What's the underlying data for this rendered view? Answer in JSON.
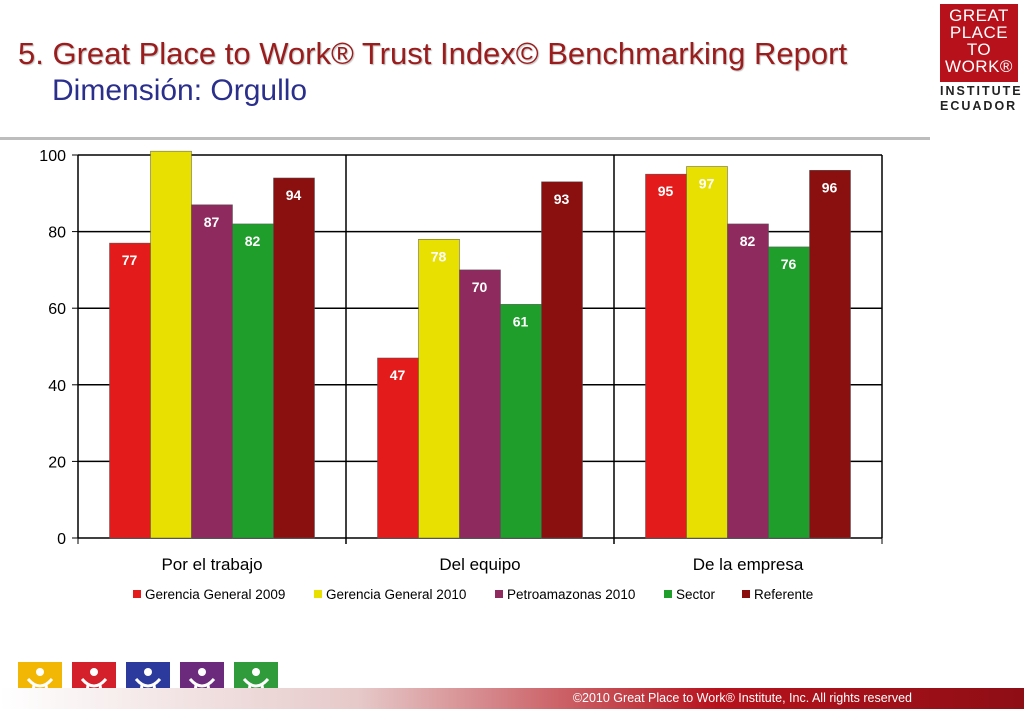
{
  "header": {
    "title": "5. Great Place to Work® Trust Index© Benchmarking Report",
    "subtitle": "Dimensión: Orgullo"
  },
  "logo": {
    "lines": [
      "GREAT",
      "PLACE",
      "TO",
      "WORK®"
    ],
    "institute": "INSTITUTE",
    "country": "ECUADOR",
    "color": "#b7121c"
  },
  "chart_data": {
    "type": "bar",
    "title": "",
    "xlabel": "",
    "ylabel": "",
    "ylim": [
      0,
      100
    ],
    "yticks": [
      0,
      20,
      40,
      60,
      80,
      100
    ],
    "grid": true,
    "legend_position": "bottom",
    "categories": [
      "Por el trabajo",
      "Del equipo",
      "De la empresa"
    ],
    "series": [
      {
        "name": "Gerencia General 2009",
        "color": "#e31b1b",
        "values": [
          77,
          47,
          95
        ],
        "labels": [
          "77",
          "47",
          "95"
        ]
      },
      {
        "name": "Gerencia General 2010",
        "color": "#e8e000",
        "values": [
          101,
          78,
          97
        ],
        "labels": [
          "",
          "78",
          "97"
        ]
      },
      {
        "name": "Petroamazonas 2010",
        "color": "#8e2a5e",
        "values": [
          87,
          70,
          82
        ],
        "labels": [
          "87",
          "70",
          "82"
        ]
      },
      {
        "name": "Sector",
        "color": "#1f9e2c",
        "values": [
          82,
          61,
          76
        ],
        "labels": [
          "82",
          "61",
          "76"
        ]
      },
      {
        "name": "Referente",
        "color": "#8a0f0f",
        "values": [
          94,
          93,
          96
        ],
        "labels": [
          "94",
          "93",
          "96"
        ]
      }
    ]
  },
  "bottom_icons": [
    {
      "name": "figure-icon-yellow",
      "color": "#f2b705"
    },
    {
      "name": "figure-icon-red",
      "color": "#d3202a"
    },
    {
      "name": "figure-icon-blue",
      "color": "#2b3a9c"
    },
    {
      "name": "figure-icon-purple",
      "color": "#6b2a7c"
    },
    {
      "name": "figure-icon-green",
      "color": "#2f9b3a"
    }
  ],
  "footer": {
    "copyright": "©2010 Great Place to Work® Institute, Inc. All rights reserved"
  }
}
